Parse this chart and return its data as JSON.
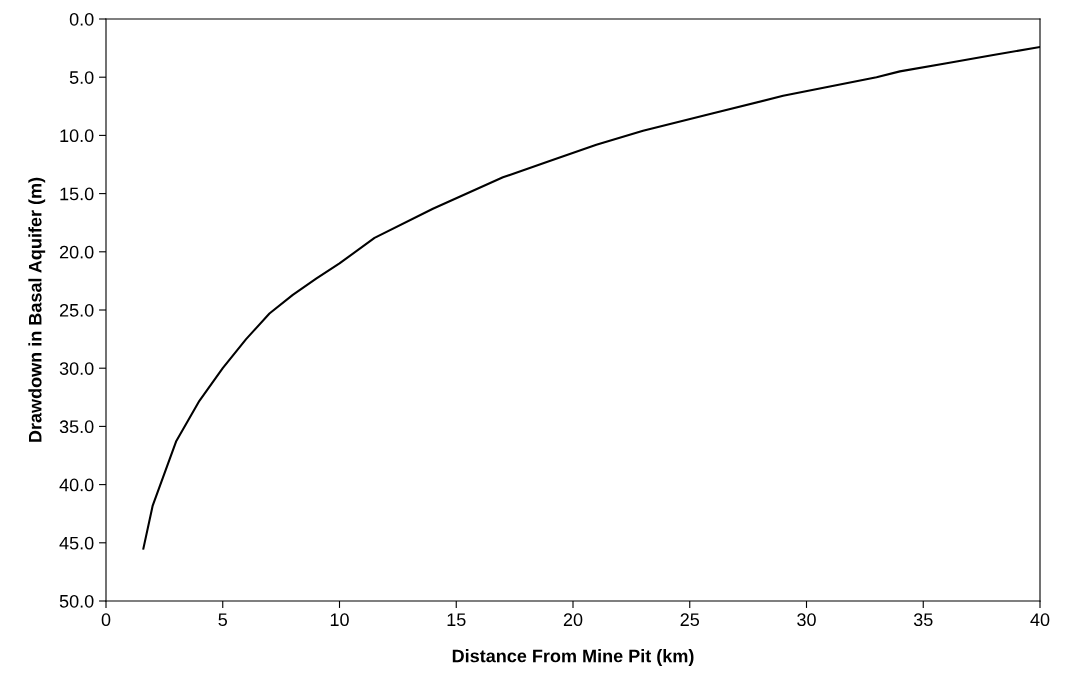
{
  "chart_data": {
    "type": "line",
    "xlabel": "Distance From Mine Pit (km)",
    "ylabel": "Drawdown in Basal Aquifer (m)",
    "x": [
      1.6,
      2,
      3,
      4,
      5,
      6,
      7,
      8,
      9,
      10,
      11.5,
      14,
      17,
      19,
      21,
      23,
      26,
      29,
      31,
      33,
      34,
      36,
      38,
      40
    ],
    "series": [
      {
        "color": "#000000",
        "values": [
          45.5,
          41.8,
          36.3,
          32.8,
          30.0,
          27.5,
          25.3,
          23.7,
          22.3,
          21.0,
          18.8,
          16.3,
          13.6,
          12.2,
          10.8,
          9.6,
          8.1,
          6.6,
          5.8,
          5.0,
          4.5,
          3.8,
          3.1,
          2.4
        ]
      }
    ],
    "xlim": [
      0,
      40
    ],
    "xticks": [
      0,
      5,
      10,
      15,
      20,
      25,
      30,
      35,
      40
    ],
    "ylim": [
      50,
      0
    ],
    "yticks": [
      {
        "value": 0,
        "label": "0.0"
      },
      {
        "value": 5,
        "label": "5.0"
      },
      {
        "value": 10,
        "label": "10.0"
      },
      {
        "value": 15,
        "label": "15.0"
      },
      {
        "value": 20,
        "label": "20.0"
      },
      {
        "value": 25,
        "label": "25.0"
      },
      {
        "value": 30,
        "label": "30.0"
      },
      {
        "value": 35,
        "label": "35.0"
      },
      {
        "value": 40,
        "label": "40.0"
      },
      {
        "value": 45,
        "label": "45.0"
      },
      {
        "value": 50,
        "label": "50.0"
      }
    ],
    "marker": "none",
    "line_style": "solid"
  }
}
